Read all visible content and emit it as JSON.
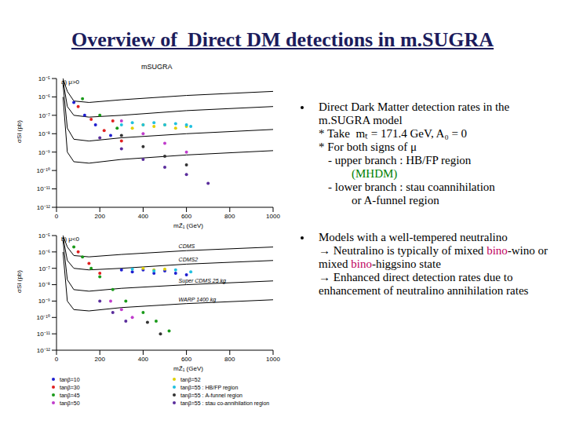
{
  "title": "Overview of  Direct DM detections in m.SUGRA",
  "figure_title": "mSUGRA",
  "chart_data": [
    {
      "type": "scatter",
      "title": "a) μ>0",
      "x_label": "mZ̃₁ (GeV)",
      "y_label": "σSI (pb)",
      "log": "y",
      "xlim": [
        0,
        1000
      ],
      "xticks": [
        0,
        200,
        400,
        600,
        800,
        1000
      ],
      "ylim": [
        1e-12,
        1e-05
      ],
      "yticks": [
        {
          "value": 1e-05,
          "label": "10⁻⁵"
        },
        {
          "value": 1e-06,
          "label": "10⁻⁶"
        },
        {
          "value": 1e-07,
          "label": "10⁻⁷"
        },
        {
          "value": 1e-08,
          "label": "10⁻⁸"
        },
        {
          "value": 1e-09,
          "label": "10⁻⁹"
        },
        {
          "value": 1e-10,
          "label": "10⁻¹⁰"
        },
        {
          "value": 1e-11,
          "label": "10⁻¹¹"
        },
        {
          "value": 1e-12,
          "label": "10⁻¹²"
        }
      ],
      "limits": [
        {
          "color": "#000000",
          "x": [
            30,
            50,
            80,
            150,
            300,
            600,
            1000
          ],
          "values": [
            1e-05,
            2e-06,
            6e-07,
            5e-07,
            7e-07,
            1.2e-06,
            2e-06
          ]
        },
        {
          "color": "#000000",
          "x": [
            30,
            50,
            80,
            150,
            300,
            600,
            1000
          ],
          "values": [
            8e-06,
            3e-07,
            1e-07,
            8e-08,
            1e-07,
            1.8e-07,
            3e-07
          ]
        },
        {
          "color": "#000000",
          "x": [
            30,
            50,
            80,
            150,
            300,
            600,
            1000
          ],
          "values": [
            5e-06,
            2e-08,
            5e-09,
            4e-09,
            6e-09,
            1e-08,
            1.7e-08
          ]
        },
        {
          "color": "#000000",
          "x": [
            30,
            50,
            80,
            150,
            300,
            600,
            1000
          ],
          "values": [
            1e-06,
            1e-09,
            3e-10,
            2.5e-10,
            4e-10,
            7e-10,
            1.2e-09
          ]
        }
      ],
      "series": [
        {
          "color": "#1f1fd0",
          "x": [
            80,
            130,
            180,
            250
          ],
          "values": [
            5e-07,
            1e-07,
            3e-08,
            8e-09
          ]
        },
        {
          "color": "#e02020",
          "x": [
            100,
            160,
            220,
            300,
            260
          ],
          "values": [
            3e-07,
            6e-08,
            1.5e-08,
            4e-09,
            5e-08
          ]
        },
        {
          "color": "#1a9a1a",
          "x": [
            120,
            200,
            280
          ],
          "values": [
            8e-07,
            1e-07,
            2e-08
          ]
        },
        {
          "color": "#c03ccc",
          "x": [
            300,
            400,
            500,
            600
          ],
          "values": [
            5e-08,
            1e-08,
            3e-09,
            1e-09
          ]
        },
        {
          "color": "#e0d000",
          "x": [
            350,
            400,
            450,
            500,
            550,
            600
          ],
          "values": [
            2e-08,
            3e-08,
            2.5e-08,
            3e-08,
            2e-08,
            2.5e-08
          ]
        },
        {
          "color": "#20c0e0",
          "x": [
            300,
            350,
            400,
            450,
            500,
            550,
            600,
            620
          ],
          "values": [
            3e-08,
            4e-08,
            3e-08,
            4e-08,
            3e-08,
            3.5e-08,
            3e-08,
            2.5e-08
          ]
        },
        {
          "color": "#333333",
          "x": [
            300,
            400,
            500,
            600
          ],
          "values": [
            8e-09,
            2e-09,
            6e-10,
            2e-10
          ]
        },
        {
          "color": "#5a2d9c",
          "x": [
            200,
            300,
            400,
            500,
            600,
            700
          ],
          "values": [
            6e-09,
            1.5e-09,
            4e-10,
            1.5e-10,
            6e-11,
            2e-11
          ]
        }
      ]
    },
    {
      "type": "scatter",
      "title": "b) μ<0",
      "x_label": "mZ̃₁ (GeV)",
      "y_label": "σSI (pb)",
      "log": "y",
      "legend": "bottom",
      "xlim": [
        0,
        1000
      ],
      "xticks": [
        0,
        200,
        400,
        600,
        800,
        1000
      ],
      "ylim": [
        1e-12,
        1e-05
      ],
      "yticks": [
        {
          "value": 1e-05,
          "label": "10⁻⁵"
        },
        {
          "value": 1e-06,
          "label": "10⁻⁶"
        },
        {
          "value": 1e-07,
          "label": "10⁻⁷"
        },
        {
          "value": 1e-08,
          "label": "10⁻⁸"
        },
        {
          "value": 1e-09,
          "label": "10⁻⁹"
        },
        {
          "value": 1e-10,
          "label": "10⁻¹⁰"
        },
        {
          "value": 1e-11,
          "label": "10⁻¹¹"
        },
        {
          "value": 1e-12,
          "label": "10⁻¹²"
        }
      ],
      "limits": [
        {
          "name": "CDMS",
          "color": "#000000",
          "x": [
            30,
            50,
            80,
            150,
            300,
            600,
            1000
          ],
          "values": [
            1e-05,
            2e-06,
            6e-07,
            5e-07,
            7e-07,
            1.2e-06,
            2e-06
          ]
        },
        {
          "name": "CDMS2",
          "color": "#000000",
          "x": [
            30,
            50,
            80,
            150,
            300,
            600,
            1000
          ],
          "values": [
            8e-06,
            3e-07,
            1e-07,
            8e-08,
            1e-07,
            1.8e-07,
            3e-07
          ]
        },
        {
          "name": "Super CDMS 25 kg",
          "color": "#000000",
          "x": [
            30,
            50,
            80,
            150,
            300,
            600,
            1000
          ],
          "values": [
            5e-06,
            2e-08,
            5e-09,
            4e-09,
            6e-09,
            1e-08,
            1.7e-08
          ]
        },
        {
          "name": "WARP 1400 kg",
          "color": "#000000",
          "x": [
            30,
            50,
            80,
            150,
            300,
            600,
            1000
          ],
          "values": [
            1e-06,
            1e-09,
            3e-10,
            2.5e-10,
            4e-10,
            7e-10,
            1.2e-09
          ]
        }
      ],
      "series": [
        {
          "name": "tanβ=10",
          "color": "#1f1fd0",
          "x": [
            300,
            350,
            400,
            450,
            500,
            550,
            600
          ],
          "values": [
            8e-08,
            6e-08,
            8e-08,
            5e-08,
            7e-08,
            5e-08,
            4e-08
          ]
        },
        {
          "name": "tanβ=30",
          "color": "#e02020",
          "x": [
            100,
            150,
            200
          ],
          "values": [
            1e-06,
            2e-07,
            5e-08
          ]
        },
        {
          "name": "tanβ=45",
          "color": "#1a9a1a",
          "x": [
            80,
            120,
            160,
            200,
            260,
            320,
            400,
            460,
            520
          ],
          "values": [
            2e-06,
            5e-07,
            1e-07,
            3e-08,
            5e-09,
            1e-09,
            2e-10,
            6e-11,
            1.5e-11
          ]
        },
        {
          "name": "tanβ=50",
          "color": "#c03ccc",
          "x": [
            250,
            300,
            350
          ],
          "values": [
            1e-09,
            3e-10,
            1e-10
          ]
        },
        {
          "name": "tanβ=52",
          "color": "#e0d000",
          "x": [
            400,
            450,
            500
          ],
          "values": [
            1e-07,
            8e-08,
            9e-08
          ]
        },
        {
          "name": "tanβ=55 : HB/FP region",
          "color": "#20c0e0",
          "x": [
            350,
            450,
            550,
            620
          ],
          "values": [
            9e-08,
            7e-08,
            8e-08,
            6e-08
          ]
        },
        {
          "name": "tanβ=55 : A-funnel region",
          "color": "#333333",
          "x": [
            420,
            480
          ],
          "values": [
            5e-11,
            1e-11
          ]
        },
        {
          "name": "tanβ=55 : stau co-annihilation region",
          "color": "#5a2d9c",
          "x": [
            200,
            260,
            320
          ],
          "values": [
            1e-09,
            2e-10,
            6e-11
          ]
        }
      ]
    }
  ],
  "bullets": [
    {
      "lines": [
        [
          {
            "text": "Direct Dark Matter detection rates in the m.SUGRA model"
          }
        ],
        [
          {
            "text": "* Take  mₜ = 171.4 GeV, A₀ = 0"
          }
        ],
        [
          {
            "text": "* For both signs of μ"
          }
        ],
        [
          {
            "text": "- upper branch : HB/FP region"
          }
        ],
        [
          {
            "text": "(MHDM)",
            "color": "#008000"
          }
        ],
        [
          {
            "text": "- lower branch : stau coannihilation"
          }
        ],
        [
          {
            "text": "or A-funnel region"
          }
        ]
      ]
    },
    {
      "lines": [
        [
          {
            "text": "Models with a well-tempered neutralino"
          }
        ],
        [
          {
            "text": "→ Neutralino is typically of mixed "
          },
          {
            "text": "bino",
            "color": "#c00060"
          },
          {
            "text": "-wino or mixed "
          },
          {
            "text": "bino",
            "color": "#c00060"
          },
          {
            "text": "-higgsino state"
          }
        ],
        [
          {
            "text": "→ Enhanced direct detection rates due to enhancement of neutralino annihilation rates"
          }
        ]
      ]
    }
  ]
}
